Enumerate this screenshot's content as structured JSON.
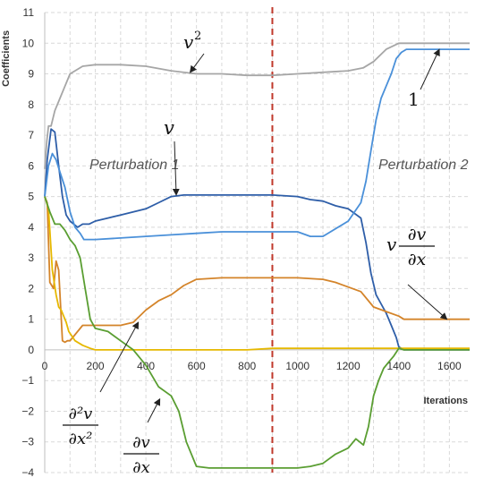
{
  "chart_data": {
    "type": "line",
    "title": "",
    "xlabel": "Iterations",
    "ylabel": "Coefficients",
    "xlim": [
      0,
      1680
    ],
    "ylim": [
      -4,
      11
    ],
    "x_ticks": [
      0,
      200,
      400,
      600,
      800,
      1000,
      1200,
      1400,
      1600
    ],
    "y_ticks": [
      -4,
      -3,
      -2,
      -1,
      0,
      1,
      2,
      3,
      4,
      5,
      6,
      7,
      8,
      9,
      10,
      11
    ],
    "grid": true,
    "vertical_line": {
      "x": 900,
      "color": "#c0392b",
      "style": "dashed"
    },
    "regions": [
      "Perturbation 1",
      "Perturbation 2"
    ],
    "series": [
      {
        "color": "#a6a6a6",
        "x": [
          0,
          8,
          15,
          25,
          40,
          60,
          75,
          100,
          150,
          200,
          300,
          400,
          500,
          600,
          700,
          800,
          900,
          1000,
          1100,
          1200,
          1260,
          1300,
          1350,
          1400,
          1500,
          1600,
          1680
        ],
        "y": [
          5.9,
          6.8,
          7.3,
          7.3,
          7.8,
          8.2,
          8.5,
          9.0,
          9.25,
          9.3,
          9.3,
          9.25,
          9.1,
          9.0,
          9.0,
          8.95,
          8.95,
          9.0,
          9.05,
          9.1,
          9.2,
          9.4,
          9.8,
          10.0,
          10.0,
          10.0,
          10.0
        ]
      },
      {
        "color": "#2e5ea8",
        "x": [
          0,
          10,
          25,
          40,
          55,
          70,
          85,
          100,
          115,
          130,
          150,
          175,
          200,
          250,
          300,
          350,
          400,
          450,
          500,
          550,
          600,
          700,
          800,
          900,
          1000,
          1050,
          1100,
          1150,
          1200,
          1250,
          1270,
          1290,
          1310,
          1330,
          1350,
          1370,
          1390,
          1400,
          1420,
          1500,
          1600,
          1680
        ],
        "y": [
          5.0,
          6.2,
          7.2,
          7.1,
          6.0,
          5.0,
          4.4,
          4.2,
          4.1,
          4.0,
          4.1,
          4.1,
          4.2,
          4.3,
          4.4,
          4.5,
          4.6,
          4.8,
          5.0,
          5.05,
          5.05,
          5.05,
          5.05,
          5.05,
          5.0,
          4.9,
          4.85,
          4.7,
          4.6,
          4.3,
          3.5,
          2.5,
          1.8,
          1.5,
          1.2,
          0.8,
          0.4,
          0.1,
          0.0,
          0.0,
          0.0,
          0.0
        ]
      },
      {
        "color": "#4a90d9",
        "x": [
          0,
          15,
          30,
          45,
          60,
          80,
          100,
          120,
          140,
          155,
          175,
          200,
          300,
          400,
          500,
          600,
          700,
          800,
          900,
          1000,
          1050,
          1100,
          1200,
          1250,
          1270,
          1290,
          1310,
          1330,
          1350,
          1370,
          1390,
          1410,
          1430,
          1500,
          1600,
          1680
        ],
        "y": [
          5.0,
          6.0,
          6.4,
          6.2,
          5.8,
          5.3,
          4.5,
          4.0,
          3.8,
          3.6,
          3.6,
          3.6,
          3.65,
          3.7,
          3.75,
          3.8,
          3.85,
          3.85,
          3.85,
          3.85,
          3.7,
          3.7,
          4.2,
          4.8,
          5.5,
          6.5,
          7.5,
          8.2,
          8.6,
          9.0,
          9.5,
          9.7,
          9.8,
          9.8,
          9.8,
          9.8
        ]
      },
      {
        "color": "#d4842a",
        "x": [
          0,
          10,
          20,
          35,
          45,
          55,
          70,
          80,
          90,
          100,
          150,
          200,
          300,
          350,
          400,
          450,
          500,
          550,
          600,
          700,
          800,
          900,
          1000,
          1100,
          1150,
          1200,
          1250,
          1300,
          1350,
          1400,
          1420,
          1500,
          1600,
          1680
        ],
        "y": [
          5.0,
          4.8,
          2.2,
          2.0,
          2.9,
          2.6,
          0.3,
          0.25,
          0.3,
          0.3,
          0.8,
          0.8,
          0.8,
          0.9,
          1.3,
          1.6,
          1.8,
          2.1,
          2.3,
          2.35,
          2.35,
          2.35,
          2.35,
          2.3,
          2.2,
          2.05,
          1.9,
          1.4,
          1.25,
          1.1,
          1.0,
          1.0,
          1.0,
          1.0
        ]
      },
      {
        "color": "#e6b800",
        "x": [
          0,
          15,
          30,
          45,
          55,
          65,
          75,
          85,
          95,
          120,
          150,
          180,
          200,
          250,
          300,
          400,
          500,
          600,
          700,
          800,
          900,
          1000,
          1100,
          1200,
          1300,
          1400,
          1500,
          1600,
          1680
        ],
        "y": [
          5.0,
          4.6,
          2.6,
          1.8,
          1.4,
          1.3,
          1.1,
          0.9,
          0.6,
          0.3,
          0.15,
          0.05,
          0.0,
          0.0,
          0.0,
          0.0,
          0.0,
          0.0,
          0.0,
          0.0,
          0.05,
          0.05,
          0.05,
          0.05,
          0.05,
          0.05,
          0.05,
          0.05,
          0.05
        ]
      },
      {
        "color": "#5a9e32",
        "x": [
          0,
          20,
          40,
          60,
          80,
          100,
          120,
          140,
          160,
          180,
          200,
          250,
          300,
          350,
          400,
          450,
          500,
          530,
          560,
          600,
          650,
          700,
          800,
          900,
          1000,
          1050,
          1100,
          1150,
          1200,
          1230,
          1260,
          1280,
          1300,
          1320,
          1340,
          1360,
          1380,
          1400,
          1420,
          1500,
          1600,
          1680
        ],
        "y": [
          5.0,
          4.5,
          4.1,
          4.1,
          3.9,
          3.6,
          3.4,
          3.0,
          2.0,
          1.0,
          0.7,
          0.6,
          0.3,
          0.0,
          -0.5,
          -1.2,
          -1.5,
          -2.0,
          -3.0,
          -3.8,
          -3.85,
          -3.85,
          -3.85,
          -3.85,
          -3.85,
          -3.8,
          -3.7,
          -3.4,
          -3.2,
          -2.9,
          -3.1,
          -2.5,
          -1.5,
          -1.0,
          -0.6,
          -0.4,
          -0.2,
          0.05,
          0.0,
          0.0,
          0.0,
          0.0
        ]
      }
    ],
    "annotations": [
      {
        "label": "v",
        "sup": "2"
      },
      {
        "label": "v",
        "sup": ""
      },
      {
        "label": "1",
        "sup": ""
      },
      {
        "label": "v ∂v/∂x",
        "sup": ""
      },
      {
        "label": "∂²v/∂x²",
        "sup": ""
      },
      {
        "label": "∂v/∂x",
        "sup": ""
      }
    ]
  }
}
